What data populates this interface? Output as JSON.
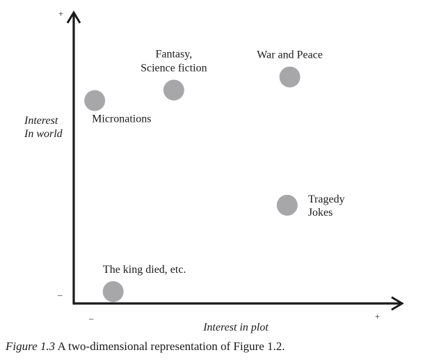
{
  "chart_data": {
    "type": "scatter",
    "xlabel": "Interest in plot",
    "ylabel_lines": [
      "Interest",
      "In world"
    ],
    "x_tick_labels": {
      "min": "–",
      "max": "+"
    },
    "y_tick_labels": {
      "min": "–",
      "max": "+"
    },
    "xlim": [
      0,
      1
    ],
    "ylim": [
      0,
      1
    ],
    "point_color": "#a7a7aa",
    "axis_color": "#1a1a1a",
    "points": [
      {
        "label_lines": [
          "Fantasy,",
          "Science fiction"
        ],
        "x": 0.34,
        "y": 0.81,
        "label_pos": "above"
      },
      {
        "label_lines": [
          "War and Peace"
        ],
        "x": 0.78,
        "y": 0.86,
        "label_pos": "above"
      },
      {
        "label_lines": [
          "Micronations"
        ],
        "x": 0.04,
        "y": 0.77,
        "label_pos": "below-right"
      },
      {
        "label_lines": [
          "Tragedy",
          "Jokes"
        ],
        "x": 0.77,
        "y": 0.37,
        "label_pos": "right"
      },
      {
        "label_lines": [
          "The king died, etc."
        ],
        "x": 0.11,
        "y": 0.04,
        "label_pos": "above"
      }
    ]
  },
  "caption": {
    "figure_label": "Figure 1.3",
    "text": "A two-dimensional representation of Figure 1.2."
  }
}
